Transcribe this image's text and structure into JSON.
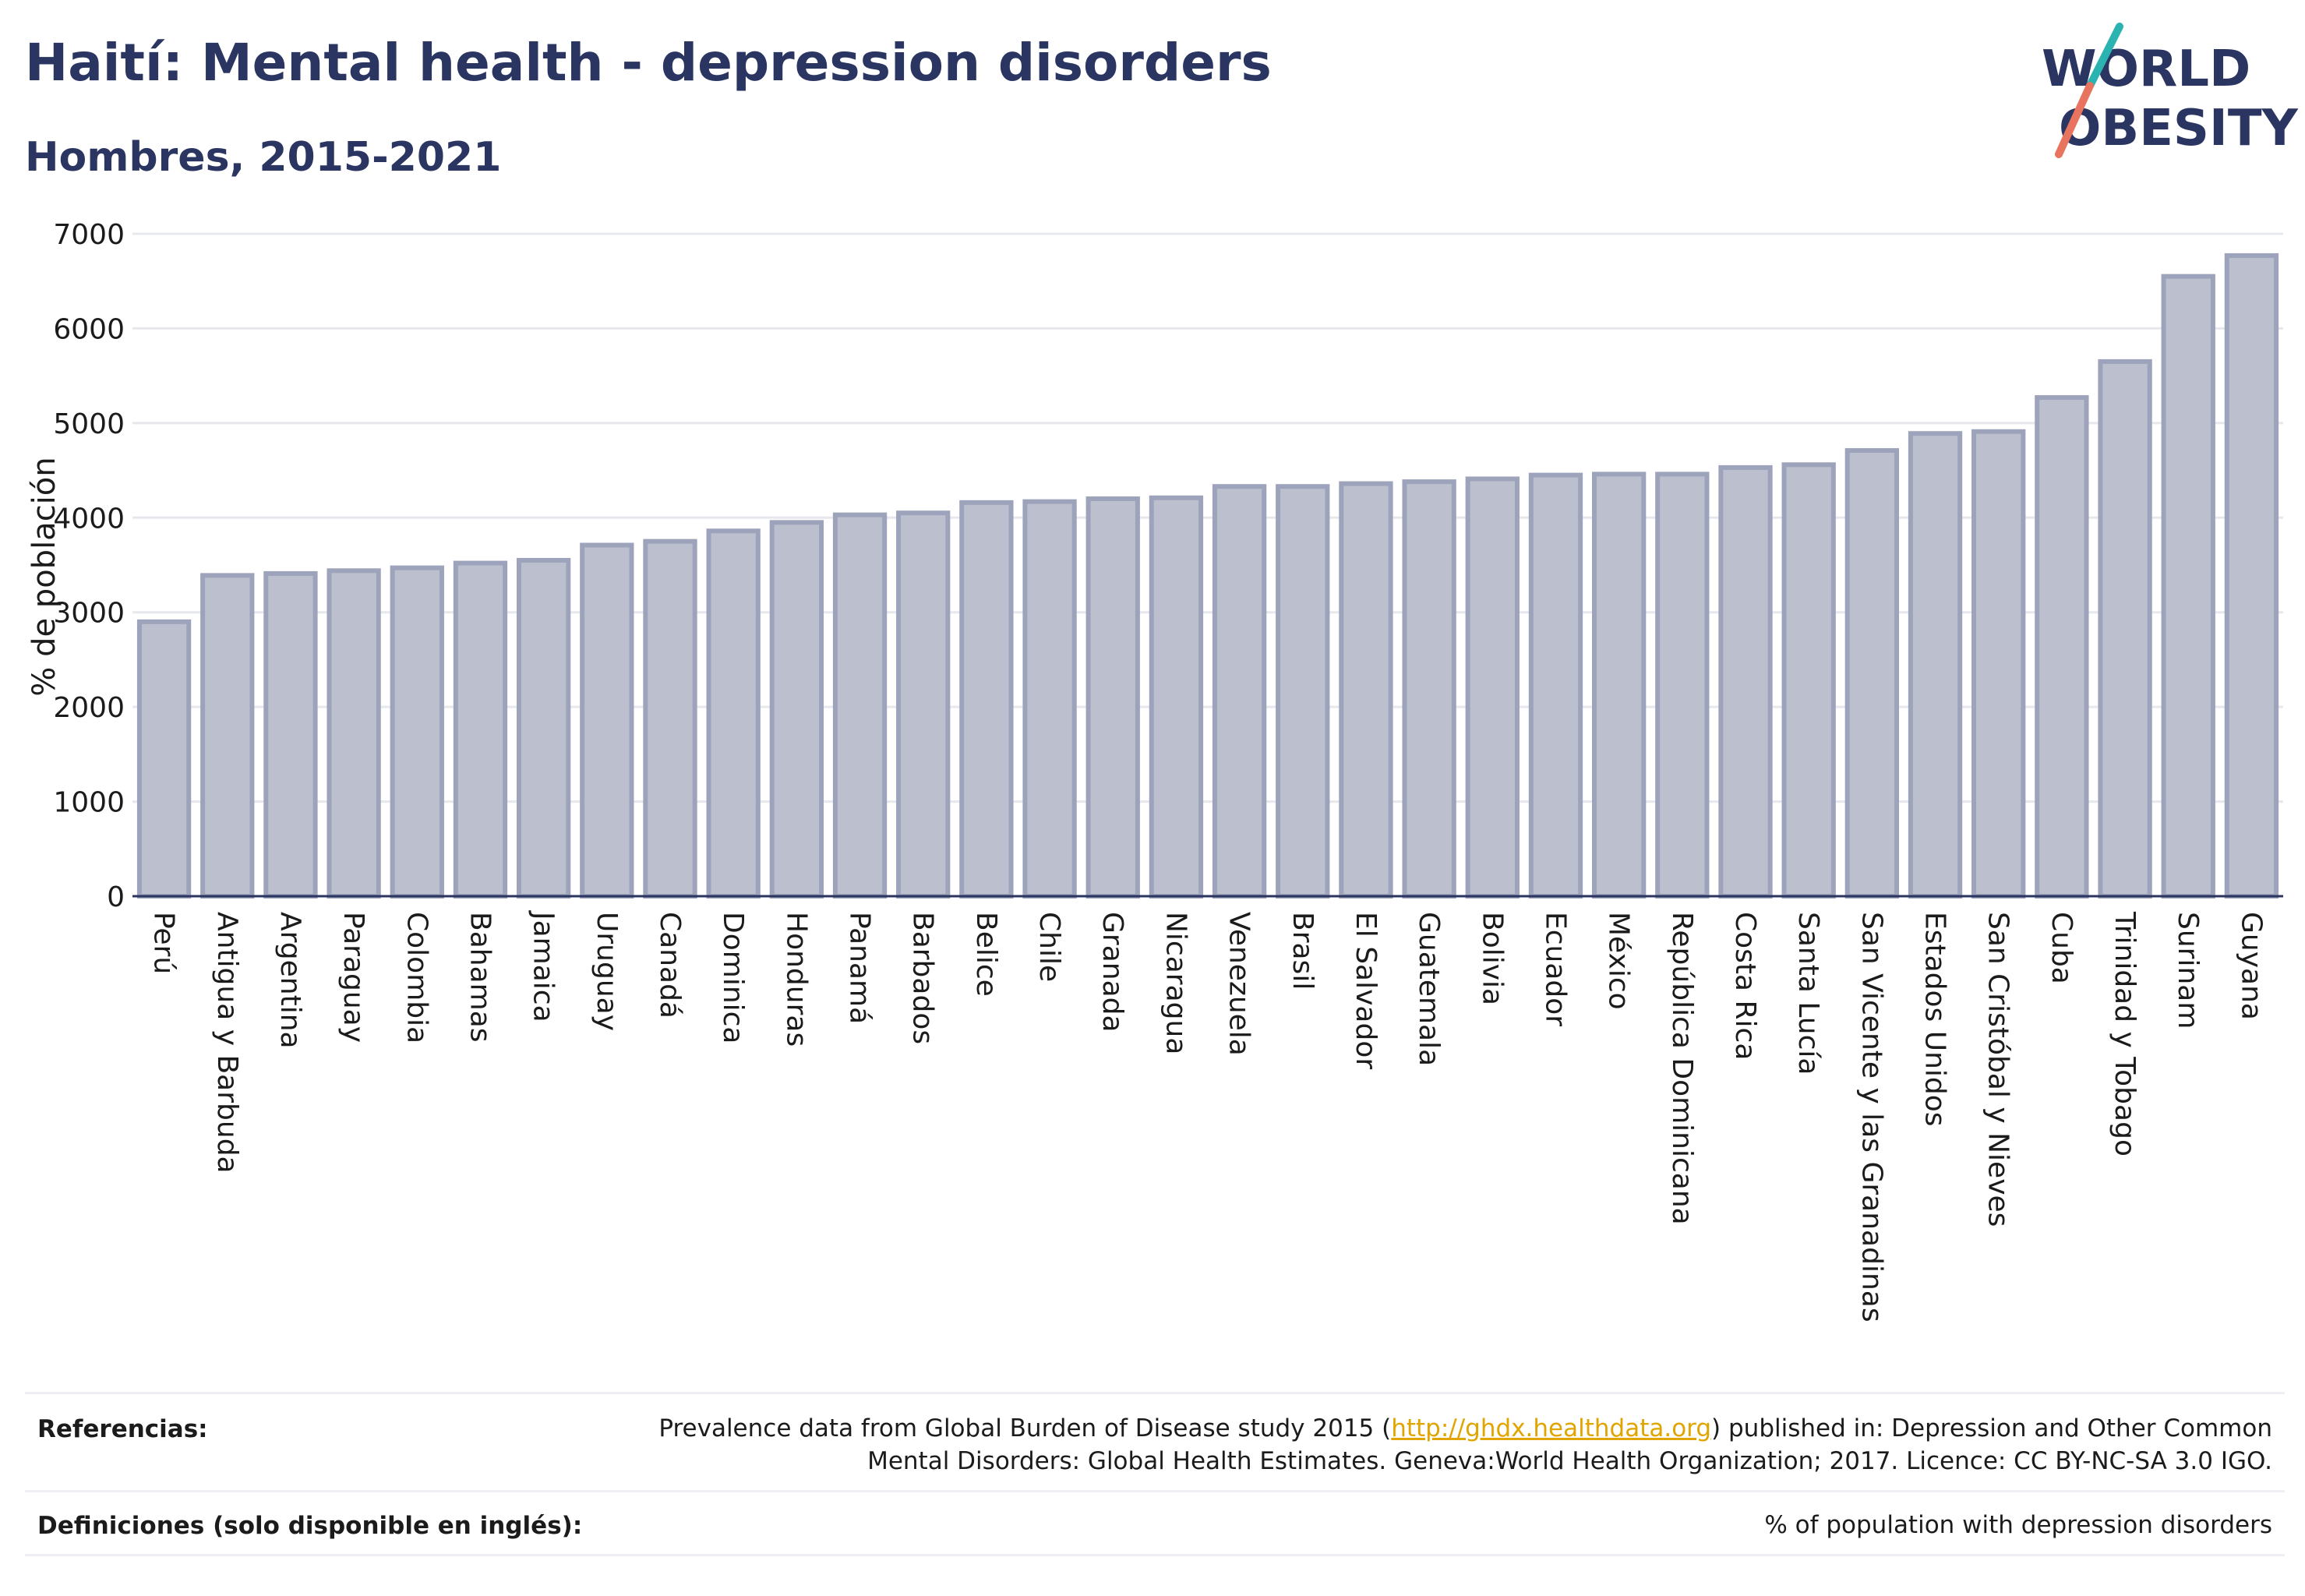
{
  "title": "Haití: Mental health - depression disorders",
  "subtitle": "Hombres, 2015-2021",
  "logo": {
    "line1": "WORLD",
    "line2": "OBESITY",
    "accent_teal": "#2bb3b1",
    "accent_coral": "#e8735e",
    "text_color": "#2a3561"
  },
  "colors": {
    "bar_fill": "#bcc0ce",
    "bar_stroke": "#9da3bb",
    "grid": "#e6e8ee",
    "title": "#2a3561",
    "link": "#e0a500"
  },
  "chart_data": {
    "type": "bar",
    "title": "",
    "ylabel": "% de población",
    "xlabel": "",
    "ylim": [
      0,
      7000
    ],
    "yticks": [
      0,
      1000,
      2000,
      3000,
      4000,
      5000,
      6000,
      7000
    ],
    "grid": true,
    "categories": [
      "Perú",
      "Antigua y Barbuda",
      "Argentina",
      "Paraguay",
      "Colombia",
      "Bahamas",
      "Jamaica",
      "Uruguay",
      "Canadá",
      "Dominica",
      "Honduras",
      "Panamá",
      "Barbados",
      "Belice",
      "Chile",
      "Granada",
      "Nicaragua",
      "Venezuela",
      "Brasil",
      "El Salvador",
      "Guatemala",
      "Bolivia",
      "Ecuador",
      "México",
      "República Dominicana",
      "Costa Rica",
      "Santa Lucía",
      "San Vicente y las Granadinas",
      "Estados Unidos",
      "San Cristóbal y Nieves",
      "Cuba",
      "Trinidad y Tobago",
      "Surinam",
      "Guyana"
    ],
    "values": [
      2900,
      3390,
      3410,
      3440,
      3470,
      3520,
      3550,
      3710,
      3750,
      3860,
      3950,
      4030,
      4050,
      4160,
      4170,
      4200,
      4210,
      4330,
      4330,
      4360,
      4380,
      4410,
      4450,
      4460,
      4460,
      4530,
      4560,
      4710,
      4890,
      4910,
      5270,
      5650,
      6550,
      6770
    ]
  },
  "footer": {
    "references_label": "Referencias:",
    "references_pre": "Prevalence data from Global Burden of Disease study 2015 (",
    "references_link": "http://ghdx.healthdata.org",
    "references_post": ") published in: Depression and Other Common",
    "references_line2": "Mental Disorders: Global Health Estimates. Geneva:World Health Organization; 2017. Licence: CC BY-NC-SA 3.0 IGO.",
    "definitions_label": "Definiciones (solo disponible en inglés):",
    "definitions_value": "% of population with depression disorders"
  }
}
